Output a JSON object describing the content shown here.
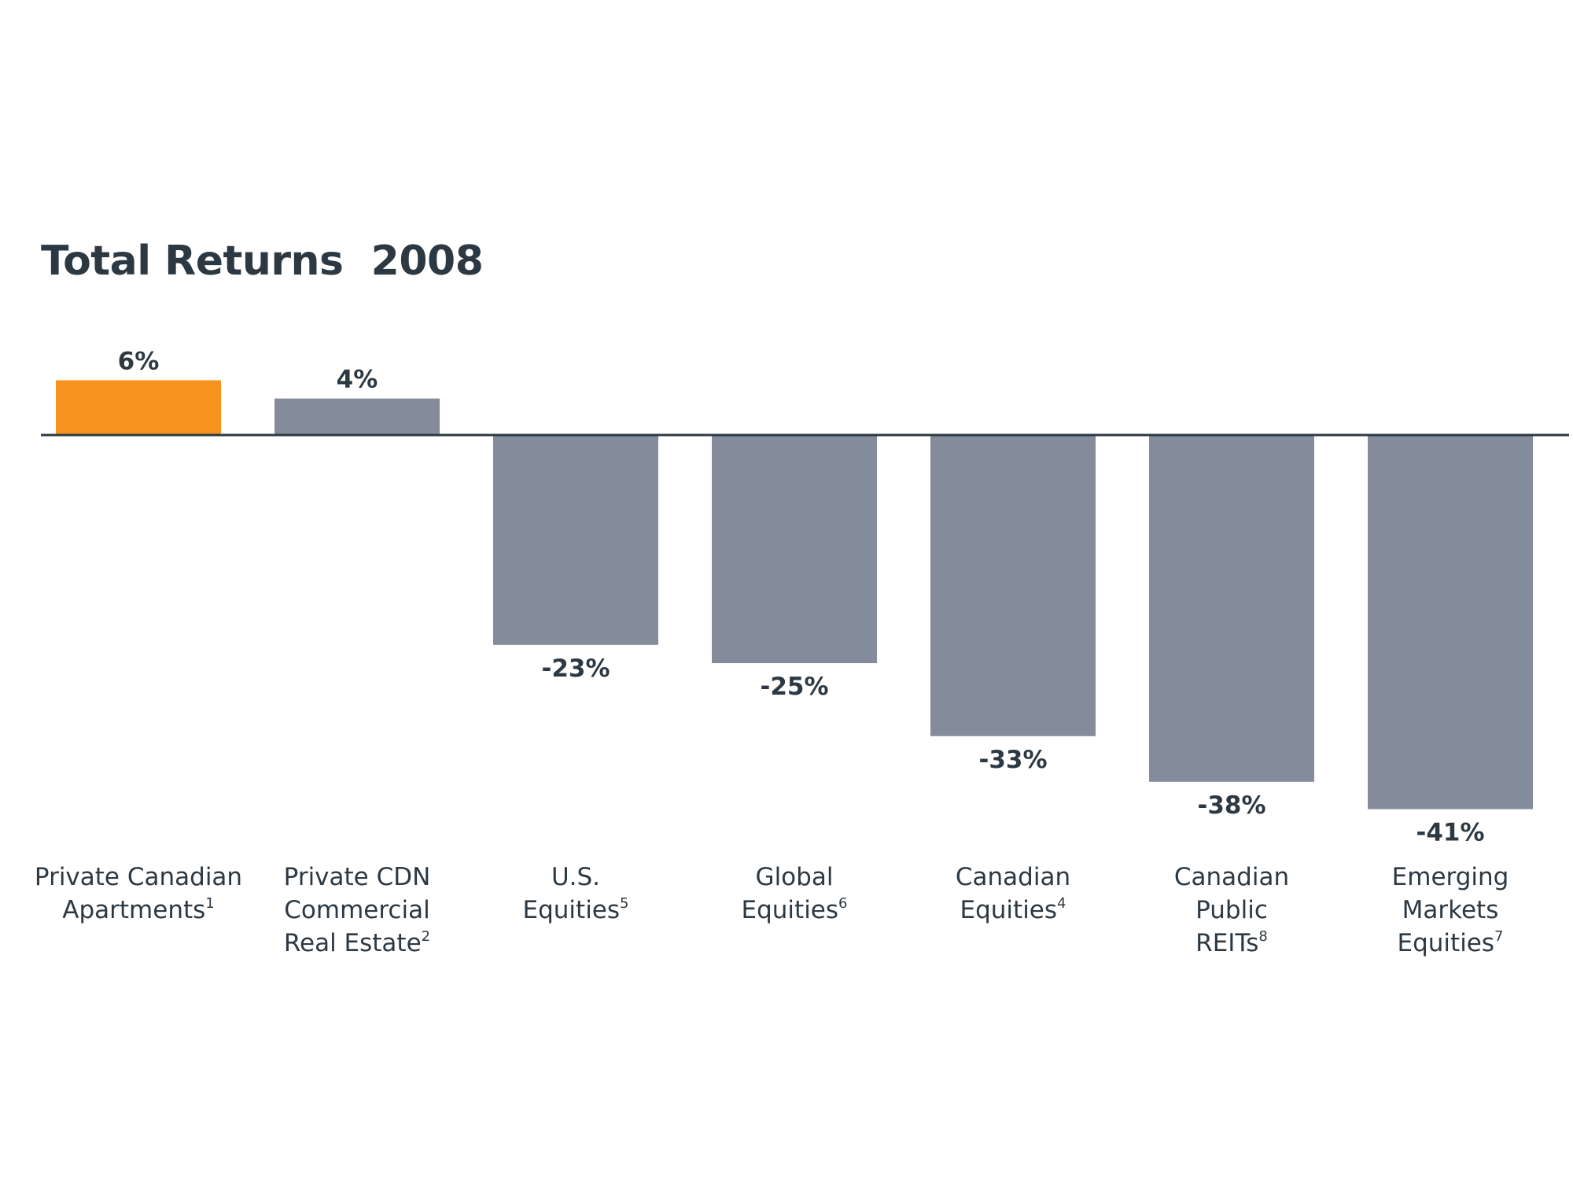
{
  "chart_data": {
    "type": "bar",
    "title": "Total Returns  2008",
    "xlabel": "",
    "ylabel": "",
    "unit": "%",
    "categories": [
      {
        "lines": [
          "Private Canadian",
          "Apartments"
        ],
        "footnote": "1"
      },
      {
        "lines": [
          "Private CDN",
          "Commercial",
          "Real Estate"
        ],
        "footnote": "2"
      },
      {
        "lines": [
          "U.S.",
          "Equities"
        ],
        "footnote": "5"
      },
      {
        "lines": [
          "Global",
          "Equities"
        ],
        "footnote": "6"
      },
      {
        "lines": [
          "Canadian",
          "Equities"
        ],
        "footnote": "4"
      },
      {
        "lines": [
          "Canadian",
          "Public",
          "REITs"
        ],
        "footnote": "8"
      },
      {
        "lines": [
          "Emerging",
          "Markets",
          "Equities"
        ],
        "footnote": "7"
      }
    ],
    "values": [
      6,
      4,
      -23,
      -25,
      -33,
      -38,
      -41
    ],
    "value_labels": [
      "6%",
      "4%",
      "-23%",
      "-25%",
      "-33%",
      "-38%",
      "-41%"
    ],
    "highlight_index": 0,
    "colors": {
      "highlight": "#f7931e",
      "default": "#848c9c",
      "baseline": "#2c3943",
      "text": "#2c3943"
    },
    "ylim": [
      -45,
      15
    ],
    "grid": false,
    "legend": "none"
  }
}
